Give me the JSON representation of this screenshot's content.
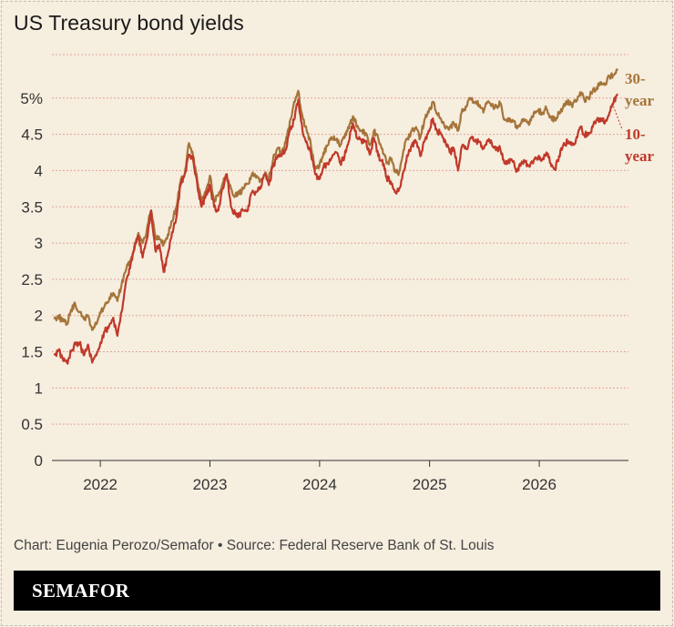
{
  "title": "US Treasury bond yields",
  "source": "Chart: Eugenia Perozo/Semafor • Source: Federal Reserve Bank of St. Louis",
  "brand": "SEMAFOR",
  "colors": {
    "background": "#F6EEDF",
    "series_30y": "#A5743A",
    "series_10y": "#C0392B",
    "grid": "#E3A49A",
    "axis": "#333333"
  },
  "chart_data": {
    "type": "line",
    "title": "US Treasury bond yields",
    "xlabel": "",
    "ylabel": "",
    "x_ticks": [
      "2022",
      "2023",
      "2024",
      "2025",
      "2026"
    ],
    "y_ticks": [
      "0",
      "0.5",
      "1",
      "1.5",
      "2",
      "2.5",
      "3",
      "3.5",
      "4",
      "4.5",
      "5%"
    ],
    "ylim": [
      0,
      5.6
    ],
    "xlim": [
      "2021-07-24",
      "2026-10-25"
    ],
    "grid": true,
    "series": [
      {
        "name": "30-year",
        "color": "#A5743A",
        "points": [
          [
            "2021-08-01",
            1.95
          ],
          [
            "2021-08-15",
            2.0
          ],
          [
            "2021-08-29",
            1.92
          ],
          [
            "2021-09-12",
            1.88
          ],
          [
            "2021-09-26",
            2.08
          ],
          [
            "2021-10-10",
            2.15
          ],
          [
            "2021-10-24",
            2.05
          ],
          [
            "2021-11-07",
            1.95
          ],
          [
            "2021-11-21",
            2.0
          ],
          [
            "2021-12-05",
            1.8
          ],
          [
            "2021-12-19",
            1.88
          ],
          [
            "2022-01-02",
            2.03
          ],
          [
            "2022-01-16",
            2.14
          ],
          [
            "2022-01-30",
            2.21
          ],
          [
            "2022-02-13",
            2.31
          ],
          [
            "2022-02-27",
            2.2
          ],
          [
            "2022-03-13",
            2.43
          ],
          [
            "2022-03-27",
            2.62
          ],
          [
            "2022-04-10",
            2.75
          ],
          [
            "2022-04-24",
            2.95
          ],
          [
            "2022-05-08",
            3.14
          ],
          [
            "2022-05-22",
            3.0
          ],
          [
            "2022-06-05",
            3.18
          ],
          [
            "2022-06-19",
            3.45
          ],
          [
            "2022-07-03",
            3.1
          ],
          [
            "2022-07-17",
            3.05
          ],
          [
            "2022-07-31",
            2.98
          ],
          [
            "2022-08-14",
            3.12
          ],
          [
            "2022-08-28",
            3.3
          ],
          [
            "2022-09-11",
            3.5
          ],
          [
            "2022-09-25",
            3.85
          ],
          [
            "2022-10-09",
            3.95
          ],
          [
            "2022-10-23",
            4.38
          ],
          [
            "2022-11-06",
            4.2
          ],
          [
            "2022-11-20",
            3.85
          ],
          [
            "2022-12-04",
            3.55
          ],
          [
            "2022-12-18",
            3.7
          ],
          [
            "2023-01-01",
            3.93
          ],
          [
            "2023-01-15",
            3.58
          ],
          [
            "2023-01-29",
            3.65
          ],
          [
            "2023-02-12",
            3.82
          ],
          [
            "2023-02-26",
            3.95
          ],
          [
            "2023-03-12",
            3.75
          ],
          [
            "2023-03-26",
            3.65
          ],
          [
            "2023-04-09",
            3.68
          ],
          [
            "2023-04-23",
            3.75
          ],
          [
            "2023-05-07",
            3.82
          ],
          [
            "2023-05-21",
            3.95
          ],
          [
            "2023-06-04",
            3.9
          ],
          [
            "2023-06-18",
            3.88
          ],
          [
            "2023-07-02",
            3.95
          ],
          [
            "2023-07-16",
            3.9
          ],
          [
            "2023-07-30",
            4.15
          ],
          [
            "2023-08-13",
            4.3
          ],
          [
            "2023-08-27",
            4.25
          ],
          [
            "2023-09-10",
            4.38
          ],
          [
            "2023-09-24",
            4.68
          ],
          [
            "2023-10-08",
            4.95
          ],
          [
            "2023-10-22",
            5.1
          ],
          [
            "2023-11-05",
            4.75
          ],
          [
            "2023-11-19",
            4.55
          ],
          [
            "2023-12-03",
            4.35
          ],
          [
            "2023-12-17",
            4.02
          ],
          [
            "2023-12-31",
            4.05
          ],
          [
            "2024-01-14",
            4.25
          ],
          [
            "2024-01-28",
            4.35
          ],
          [
            "2024-02-11",
            4.45
          ],
          [
            "2024-02-25",
            4.42
          ],
          [
            "2024-03-10",
            4.35
          ],
          [
            "2024-03-24",
            4.45
          ],
          [
            "2024-04-07",
            4.58
          ],
          [
            "2024-04-21",
            4.75
          ],
          [
            "2024-05-05",
            4.62
          ],
          [
            "2024-05-19",
            4.55
          ],
          [
            "2024-06-02",
            4.52
          ],
          [
            "2024-06-16",
            4.35
          ],
          [
            "2024-06-30",
            4.55
          ],
          [
            "2024-07-14",
            4.45
          ],
          [
            "2024-07-28",
            4.3
          ],
          [
            "2024-08-11",
            4.1
          ],
          [
            "2024-08-25",
            4.15
          ],
          [
            "2024-09-08",
            3.98
          ],
          [
            "2024-09-22",
            3.98
          ],
          [
            "2024-10-06",
            4.28
          ],
          [
            "2024-10-20",
            4.45
          ],
          [
            "2024-11-03",
            4.55
          ],
          [
            "2024-11-17",
            4.6
          ],
          [
            "2024-12-01",
            4.45
          ],
          [
            "2024-12-15",
            4.7
          ],
          [
            "2024-12-29",
            4.8
          ],
          [
            "2025-01-12",
            4.95
          ],
          [
            "2025-01-26",
            4.78
          ],
          [
            "2025-02-09",
            4.7
          ],
          [
            "2025-02-23",
            4.58
          ],
          [
            "2025-03-09",
            4.6
          ],
          [
            "2025-03-23",
            4.65
          ],
          [
            "2025-04-06",
            4.55
          ],
          [
            "2025-04-20",
            4.85
          ],
          [
            "2025-05-04",
            4.88
          ],
          [
            "2025-05-18",
            5.0
          ],
          [
            "2025-06-01",
            4.95
          ],
          [
            "2025-06-15",
            4.9
          ],
          [
            "2025-06-29",
            4.8
          ],
          [
            "2025-07-13",
            4.95
          ],
          [
            "2025-07-27",
            4.9
          ],
          [
            "2025-08-10",
            4.88
          ],
          [
            "2025-08-24",
            4.92
          ],
          [
            "2025-09-07",
            4.7
          ],
          [
            "2025-09-21",
            4.68
          ],
          [
            "2025-10-05",
            4.7
          ],
          [
            "2025-10-19",
            4.58
          ],
          [
            "2025-11-02",
            4.65
          ],
          [
            "2025-11-16",
            4.7
          ],
          [
            "2025-11-30",
            4.65
          ],
          [
            "2025-12-14",
            4.8
          ],
          [
            "2025-12-28",
            4.82
          ],
          [
            "2026-01-11",
            4.8
          ],
          [
            "2026-01-25",
            4.85
          ],
          [
            "2026-02-08",
            4.75
          ],
          [
            "2026-02-22",
            4.7
          ],
          [
            "2026-03-08",
            4.8
          ],
          [
            "2026-03-22",
            4.88
          ],
          [
            "2026-04-05",
            4.95
          ],
          [
            "2026-04-19",
            4.9
          ],
          [
            "2026-05-03",
            4.95
          ],
          [
            "2026-05-17",
            5.08
          ],
          [
            "2026-05-31",
            4.98
          ],
          [
            "2026-06-14",
            5.0
          ],
          [
            "2026-06-28",
            5.1
          ],
          [
            "2026-07-12",
            5.15
          ],
          [
            "2026-07-26",
            5.22
          ],
          [
            "2026-08-09",
            5.2
          ],
          [
            "2026-08-23",
            5.3
          ],
          [
            "2026-09-06",
            5.32
          ],
          [
            "2026-09-20",
            5.4
          ]
        ]
      },
      {
        "name": "10-year",
        "color": "#C0392B",
        "points": [
          [
            "2021-08-01",
            1.45
          ],
          [
            "2021-08-15",
            1.52
          ],
          [
            "2021-08-29",
            1.4
          ],
          [
            "2021-09-12",
            1.35
          ],
          [
            "2021-09-26",
            1.5
          ],
          [
            "2021-10-10",
            1.6
          ],
          [
            "2021-10-24",
            1.62
          ],
          [
            "2021-11-07",
            1.45
          ],
          [
            "2021-11-21",
            1.6
          ],
          [
            "2021-12-05",
            1.35
          ],
          [
            "2021-12-19",
            1.45
          ],
          [
            "2022-01-02",
            1.63
          ],
          [
            "2022-01-16",
            1.78
          ],
          [
            "2022-01-30",
            1.85
          ],
          [
            "2022-02-13",
            1.97
          ],
          [
            "2022-02-27",
            1.72
          ],
          [
            "2022-03-13",
            2.05
          ],
          [
            "2022-03-27",
            2.45
          ],
          [
            "2022-04-10",
            2.65
          ],
          [
            "2022-04-24",
            2.9
          ],
          [
            "2022-05-08",
            3.1
          ],
          [
            "2022-05-22",
            2.8
          ],
          [
            "2022-06-05",
            3.05
          ],
          [
            "2022-06-19",
            3.45
          ],
          [
            "2022-07-03",
            2.9
          ],
          [
            "2022-07-17",
            2.98
          ],
          [
            "2022-07-31",
            2.6
          ],
          [
            "2022-08-14",
            2.85
          ],
          [
            "2022-08-28",
            3.15
          ],
          [
            "2022-09-11",
            3.35
          ],
          [
            "2022-09-25",
            3.8
          ],
          [
            "2022-10-09",
            3.95
          ],
          [
            "2022-10-23",
            4.22
          ],
          [
            "2022-11-06",
            4.15
          ],
          [
            "2022-11-20",
            3.8
          ],
          [
            "2022-12-04",
            3.5
          ],
          [
            "2022-12-18",
            3.65
          ],
          [
            "2023-01-01",
            3.8
          ],
          [
            "2023-01-15",
            3.5
          ],
          [
            "2023-01-29",
            3.45
          ],
          [
            "2023-02-12",
            3.75
          ],
          [
            "2023-02-26",
            3.95
          ],
          [
            "2023-03-12",
            3.5
          ],
          [
            "2023-03-26",
            3.4
          ],
          [
            "2023-04-09",
            3.38
          ],
          [
            "2023-04-23",
            3.45
          ],
          [
            "2023-05-07",
            3.45
          ],
          [
            "2023-05-21",
            3.7
          ],
          [
            "2023-06-04",
            3.7
          ],
          [
            "2023-06-18",
            3.75
          ],
          [
            "2023-07-02",
            3.95
          ],
          [
            "2023-07-16",
            3.8
          ],
          [
            "2023-07-30",
            4.05
          ],
          [
            "2023-08-13",
            4.2
          ],
          [
            "2023-08-27",
            4.2
          ],
          [
            "2023-09-10",
            4.28
          ],
          [
            "2023-09-24",
            4.55
          ],
          [
            "2023-10-08",
            4.7
          ],
          [
            "2023-10-22",
            4.98
          ],
          [
            "2023-11-05",
            4.55
          ],
          [
            "2023-11-19",
            4.4
          ],
          [
            "2023-12-03",
            4.25
          ],
          [
            "2023-12-17",
            3.95
          ],
          [
            "2023-12-31",
            3.88
          ],
          [
            "2024-01-14",
            4.05
          ],
          [
            "2024-01-28",
            4.1
          ],
          [
            "2024-02-11",
            4.18
          ],
          [
            "2024-02-25",
            4.25
          ],
          [
            "2024-03-10",
            4.1
          ],
          [
            "2024-03-24",
            4.2
          ],
          [
            "2024-04-07",
            4.4
          ],
          [
            "2024-04-21",
            4.65
          ],
          [
            "2024-05-05",
            4.45
          ],
          [
            "2024-05-19",
            4.42
          ],
          [
            "2024-06-02",
            4.4
          ],
          [
            "2024-06-16",
            4.22
          ],
          [
            "2024-06-30",
            4.45
          ],
          [
            "2024-07-14",
            4.2
          ],
          [
            "2024-07-28",
            4.15
          ],
          [
            "2024-08-11",
            3.9
          ],
          [
            "2024-08-25",
            3.85
          ],
          [
            "2024-09-08",
            3.7
          ],
          [
            "2024-09-22",
            3.75
          ],
          [
            "2024-10-06",
            3.98
          ],
          [
            "2024-10-20",
            4.2
          ],
          [
            "2024-11-03",
            4.35
          ],
          [
            "2024-11-17",
            4.4
          ],
          [
            "2024-12-01",
            4.2
          ],
          [
            "2024-12-15",
            4.4
          ],
          [
            "2024-12-29",
            4.55
          ],
          [
            "2025-01-12",
            4.72
          ],
          [
            "2025-01-26",
            4.55
          ],
          [
            "2025-02-09",
            4.5
          ],
          [
            "2025-02-23",
            4.4
          ],
          [
            "2025-03-09",
            4.25
          ],
          [
            "2025-03-23",
            4.3
          ],
          [
            "2025-04-06",
            4.0
          ],
          [
            "2025-04-20",
            4.35
          ],
          [
            "2025-05-04",
            4.3
          ],
          [
            "2025-05-18",
            4.45
          ],
          [
            "2025-06-01",
            4.4
          ],
          [
            "2025-06-15",
            4.4
          ],
          [
            "2025-06-29",
            4.3
          ],
          [
            "2025-07-13",
            4.42
          ],
          [
            "2025-07-27",
            4.38
          ],
          [
            "2025-08-10",
            4.28
          ],
          [
            "2025-08-24",
            4.3
          ],
          [
            "2025-09-07",
            4.1
          ],
          [
            "2025-09-21",
            4.15
          ],
          [
            "2025-10-05",
            4.12
          ],
          [
            "2025-10-19",
            4.0
          ],
          [
            "2025-11-02",
            4.1
          ],
          [
            "2025-11-16",
            4.12
          ],
          [
            "2025-11-30",
            4.05
          ],
          [
            "2025-12-14",
            4.15
          ],
          [
            "2025-12-28",
            4.18
          ],
          [
            "2026-01-11",
            4.15
          ],
          [
            "2026-01-25",
            4.25
          ],
          [
            "2026-02-08",
            4.1
          ],
          [
            "2026-02-22",
            4.02
          ],
          [
            "2026-03-08",
            4.2
          ],
          [
            "2026-03-22",
            4.35
          ],
          [
            "2026-04-05",
            4.4
          ],
          [
            "2026-04-19",
            4.35
          ],
          [
            "2026-05-03",
            4.42
          ],
          [
            "2026-05-17",
            4.6
          ],
          [
            "2026-05-31",
            4.5
          ],
          [
            "2026-06-14",
            4.52
          ],
          [
            "2026-06-28",
            4.6
          ],
          [
            "2026-07-12",
            4.7
          ],
          [
            "2026-07-26",
            4.72
          ],
          [
            "2026-08-09",
            4.68
          ],
          [
            "2026-08-23",
            4.8
          ],
          [
            "2026-09-06",
            4.95
          ],
          [
            "2026-09-20",
            5.05
          ]
        ]
      }
    ],
    "labels": {
      "series_30y": [
        "30-",
        "year"
      ],
      "series_10y": [
        "10-",
        "year"
      ]
    }
  }
}
